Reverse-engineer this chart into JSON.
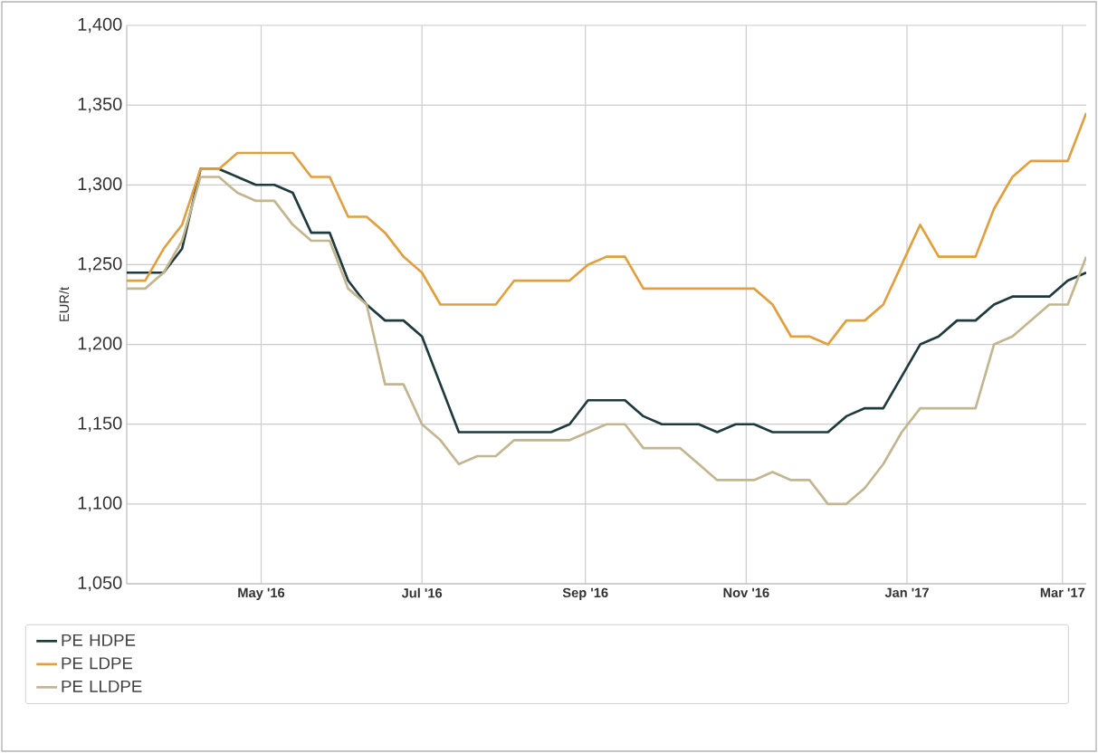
{
  "chart_data": {
    "type": "line",
    "ylabel": "EUR/t",
    "x": [
      "2016-03-11",
      "2016-03-18",
      "2016-03-25",
      "2016-04-01",
      "2016-04-08",
      "2016-04-15",
      "2016-04-22",
      "2016-04-29",
      "2016-05-06",
      "2016-05-13",
      "2016-05-20",
      "2016-05-27",
      "2016-06-03",
      "2016-06-10",
      "2016-06-17",
      "2016-06-24",
      "2016-07-01",
      "2016-07-08",
      "2016-07-15",
      "2016-07-22",
      "2016-07-29",
      "2016-08-05",
      "2016-08-12",
      "2016-08-19",
      "2016-08-26",
      "2016-09-02",
      "2016-09-09",
      "2016-09-16",
      "2016-09-23",
      "2016-09-30",
      "2016-10-07",
      "2016-10-14",
      "2016-10-21",
      "2016-10-28",
      "2016-11-04",
      "2016-11-11",
      "2016-11-18",
      "2016-11-25",
      "2016-12-02",
      "2016-12-09",
      "2016-12-16",
      "2016-12-23",
      "2016-12-30",
      "2017-01-06",
      "2017-01-13",
      "2017-01-20",
      "2017-01-27",
      "2017-02-03",
      "2017-02-10",
      "2017-02-17",
      "2017-02-24",
      "2017-03-03",
      "2017-03-10"
    ],
    "series": [
      {
        "name": "PE HDPE",
        "color": "#1f3a3d",
        "values": [
          1245,
          1245,
          1245,
          1260,
          1310,
          1310,
          1305,
          1300,
          1300,
          1295,
          1270,
          1270,
          1240,
          1225,
          1215,
          1215,
          1205,
          1175,
          1145,
          1145,
          1145,
          1145,
          1145,
          1145,
          1150,
          1165,
          1165,
          1165,
          1155,
          1150,
          1150,
          1150,
          1145,
          1150,
          1150,
          1145,
          1145,
          1145,
          1145,
          1155,
          1160,
          1160,
          1180,
          1200,
          1205,
          1215,
          1215,
          1225,
          1230,
          1230,
          1230,
          1240,
          1245
        ]
      },
      {
        "name": "PE LDPE",
        "color": "#e0a040",
        "values": [
          1240,
          1240,
          1260,
          1275,
          1310,
          1310,
          1320,
          1320,
          1320,
          1320,
          1305,
          1305,
          1280,
          1280,
          1270,
          1255,
          1245,
          1225,
          1225,
          1225,
          1225,
          1240,
          1240,
          1240,
          1240,
          1250,
          1255,
          1255,
          1235,
          1235,
          1235,
          1235,
          1235,
          1235,
          1235,
          1225,
          1205,
          1205,
          1200,
          1215,
          1215,
          1225,
          1250,
          1275,
          1255,
          1255,
          1255,
          1285,
          1305,
          1315,
          1315,
          1315,
          1345
        ]
      },
      {
        "name": "PE LLDPE",
        "color": "#c2b690",
        "values": [
          1235,
          1235,
          1245,
          1265,
          1305,
          1305,
          1295,
          1290,
          1290,
          1275,
          1265,
          1265,
          1235,
          1225,
          1175,
          1175,
          1150,
          1140,
          1125,
          1130,
          1130,
          1140,
          1140,
          1140,
          1140,
          1145,
          1150,
          1150,
          1135,
          1135,
          1135,
          1125,
          1115,
          1115,
          1115,
          1120,
          1115,
          1115,
          1100,
          1100,
          1110,
          1125,
          1145,
          1160,
          1160,
          1160,
          1160,
          1200,
          1205,
          1215,
          1225,
          1225,
          1255
        ]
      }
    ],
    "xlim": [
      "2016-03-11",
      "2017-03-10"
    ],
    "xticks": [
      {
        "value": "2016-05-01",
        "label": "May '16"
      },
      {
        "value": "2016-07-01",
        "label": "Jul '16"
      },
      {
        "value": "2016-09-01",
        "label": "Sep '16"
      },
      {
        "value": "2016-11-01",
        "label": "Nov '16"
      },
      {
        "value": "2017-01-01",
        "label": "Jan '17"
      },
      {
        "value": "2017-03-01",
        "label": "Mar '17"
      }
    ],
    "ylim": [
      1050,
      1400
    ],
    "yticks": [
      {
        "value": 1050,
        "label": "1,050"
      },
      {
        "value": 1100,
        "label": "1,100"
      },
      {
        "value": 1150,
        "label": "1,150"
      },
      {
        "value": 1200,
        "label": "1,200"
      },
      {
        "value": 1250,
        "label": "1,250"
      },
      {
        "value": 1300,
        "label": "1,300"
      },
      {
        "value": 1350,
        "label": "1,350"
      },
      {
        "value": 1400,
        "label": "1,400"
      }
    ],
    "grid": true,
    "legend": "bottom",
    "marker": "none",
    "line_style": "solid"
  }
}
